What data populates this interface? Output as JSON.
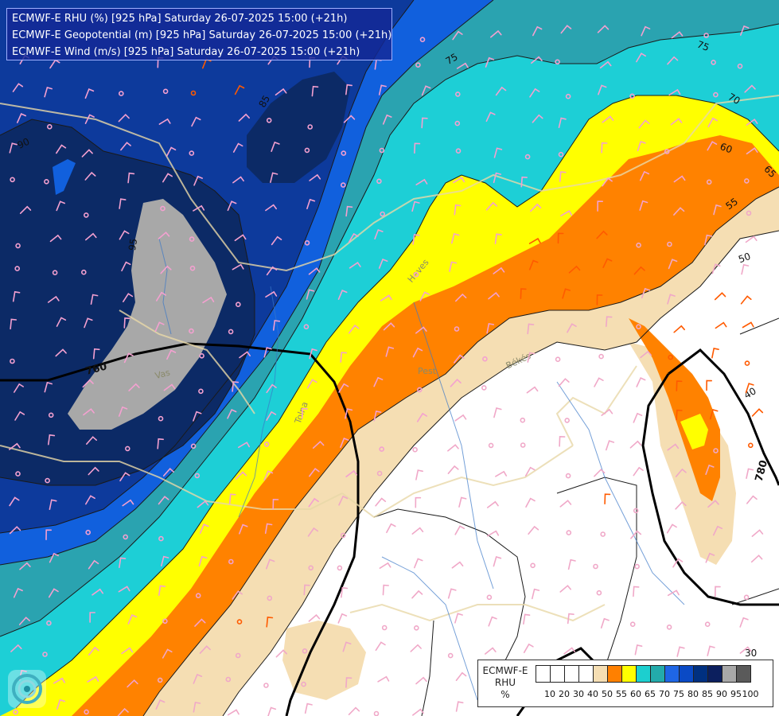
{
  "titles": [
    "ECMWF-E RHU (%) [925 hPa] Saturday 26-07-2025 15:00 (+21h)",
    "ECMWF-E Geopotential (m) [925 hPa] Saturday 26-07-2025 15:00 (+21h)",
    "ECMWF-E Wind (m/s) [925 hPa] Saturday 26-07-2025 15:00 (+21h)"
  ],
  "legend": {
    "model": "ECMWF-E",
    "variable": "RHU",
    "unit": "%",
    "ticks": [
      "10",
      "20",
      "30",
      "40",
      "50",
      "55",
      "60",
      "65",
      "70",
      "75",
      "80",
      "85",
      "90",
      "95",
      "100"
    ],
    "colors": [
      "#ffffff",
      "#ffffff",
      "#ffffff",
      "#ffffff",
      "#f5deb3",
      "#ff8000",
      "#ffff00",
      "#1ccfcf",
      "#23abab",
      "#1f66e5",
      "#0a4ac5",
      "#003080",
      "#0c1f5e",
      "#a8a8a8",
      "#5a5a5a"
    ]
  },
  "contour_labels": {
    "geopotential": [
      "760",
      "780"
    ],
    "rhu": [
      "95",
      "90",
      "85",
      "75",
      "75",
      "70",
      "65",
      "60",
      "55",
      "50",
      "40",
      "30"
    ]
  },
  "place_labels": [
    "Heves",
    "Pest",
    "Békés",
    "Vas",
    "Tolna"
  ],
  "colors": {
    "rhu_100_95": "#a8a8a8",
    "rhu_90": "#0c2a66",
    "rhu_85": "#0d3a9c",
    "rhu_80": "#1160dd",
    "rhu_75": "#2aa3b0",
    "rhu_70": "#1dcfd6",
    "rhu_65": "#ffff00",
    "rhu_60": "#ff8200",
    "rhu_55": "#f5deb3",
    "rhu_50": "#ffffff"
  },
  "icons": [
    "dwd-logo-icon",
    "wind-barb-icon"
  ]
}
